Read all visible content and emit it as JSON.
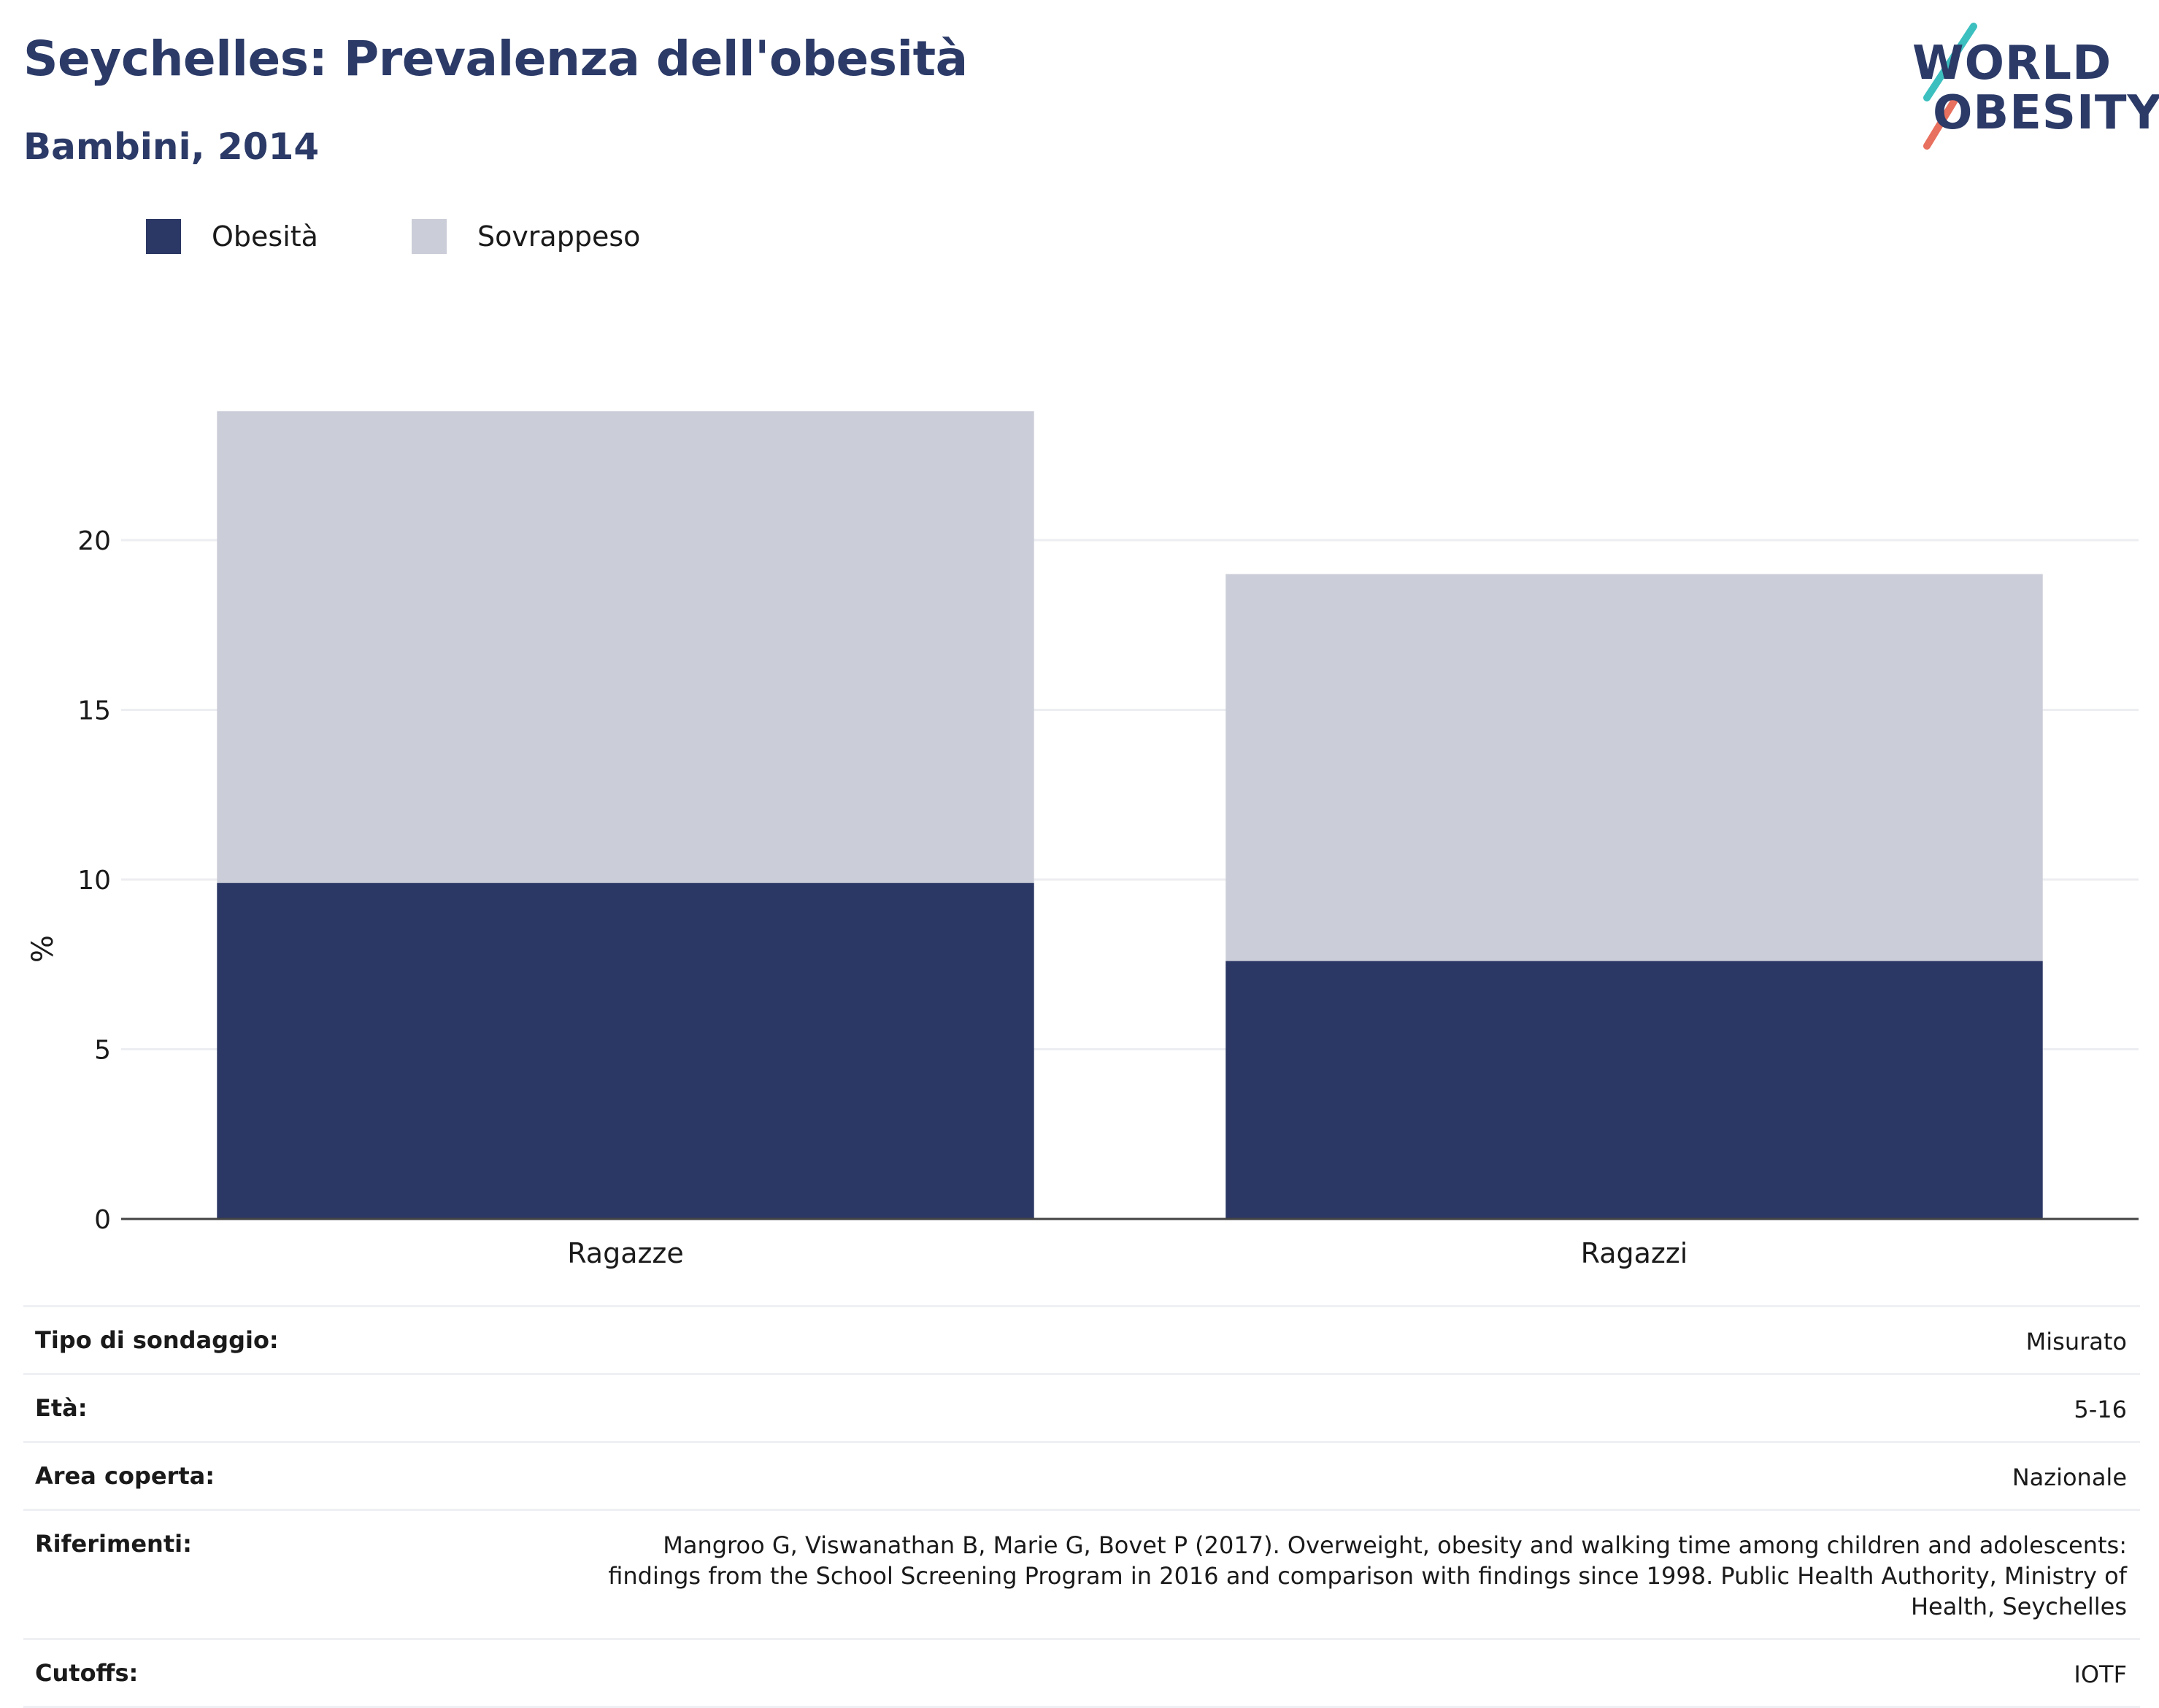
{
  "title": "Seychelles: Prevalenza dell'obesità",
  "subtitle": "Bambini, 2014",
  "logo": {
    "line1": "WORLD",
    "line2": "OBESITY"
  },
  "colors": {
    "obesity": "#2b3764",
    "overweight": "#cbcdd8",
    "title": "#2b3a67"
  },
  "chart_data": {
    "type": "bar",
    "stacked": true,
    "categories": [
      "Ragazze",
      "Ragazzi"
    ],
    "series": [
      {
        "name": "Obesità",
        "values": [
          9.9,
          7.6
        ]
      },
      {
        "name": "Sovrappeso",
        "values": [
          13.9,
          11.4
        ]
      }
    ],
    "ylabel": "%",
    "yticks": [
      0,
      5,
      10,
      15,
      20
    ],
    "ylim": [
      0,
      24
    ],
    "grid": true,
    "legend": "top-left"
  },
  "meta": [
    {
      "key": "Tipo di sondaggio:",
      "value": "Misurato"
    },
    {
      "key": "Età:",
      "value": "5-16"
    },
    {
      "key": "Area coperta:",
      "value": "Nazionale"
    },
    {
      "key": "Riferimenti:",
      "value": "Mangroo G, Viswanathan B, Marie G, Bovet P (2017). Overweight, obesity and walking time among children and adolescents: findings from the School Screening Program in 2016 and comparison with findings since 1998. Public Health Authority, Ministry of Health, Seychelles"
    },
    {
      "key": "Cutoffs:",
      "value": "IOTF"
    }
  ]
}
